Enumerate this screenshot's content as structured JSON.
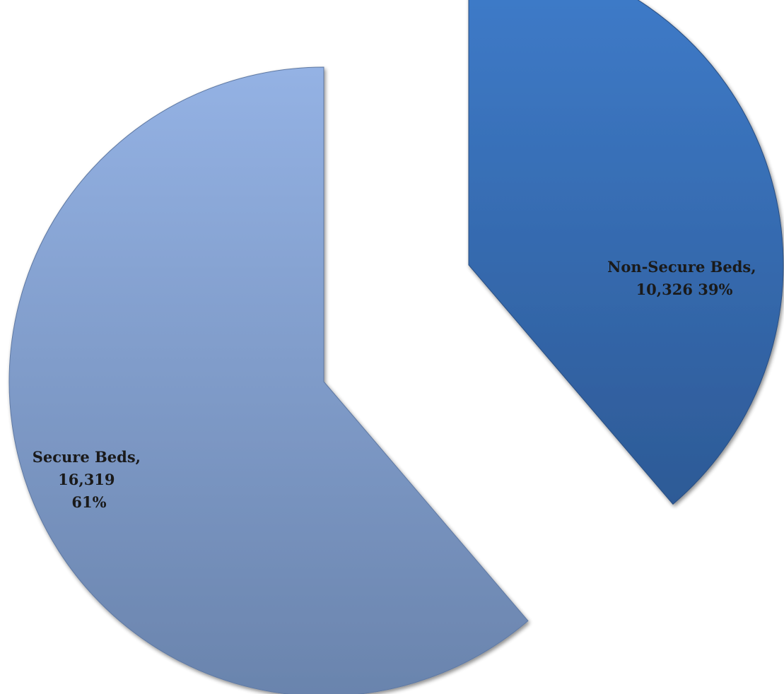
{
  "chart_data": {
    "type": "pie",
    "title": "",
    "legend": "none",
    "exploded": true,
    "slices": [
      {
        "name": "Non-Secure Beds",
        "value": 10326,
        "percent": 39,
        "label_lines": [
          "Non-Secure Beds,",
          "10,326 39%"
        ],
        "color": "#3f78c4"
      },
      {
        "name": "Secure Beds",
        "value": 16319,
        "percent": 61,
        "label_lines": [
          "Secure Beds,",
          "16,319",
          "61%"
        ],
        "color": "#86a3d4"
      }
    ]
  }
}
